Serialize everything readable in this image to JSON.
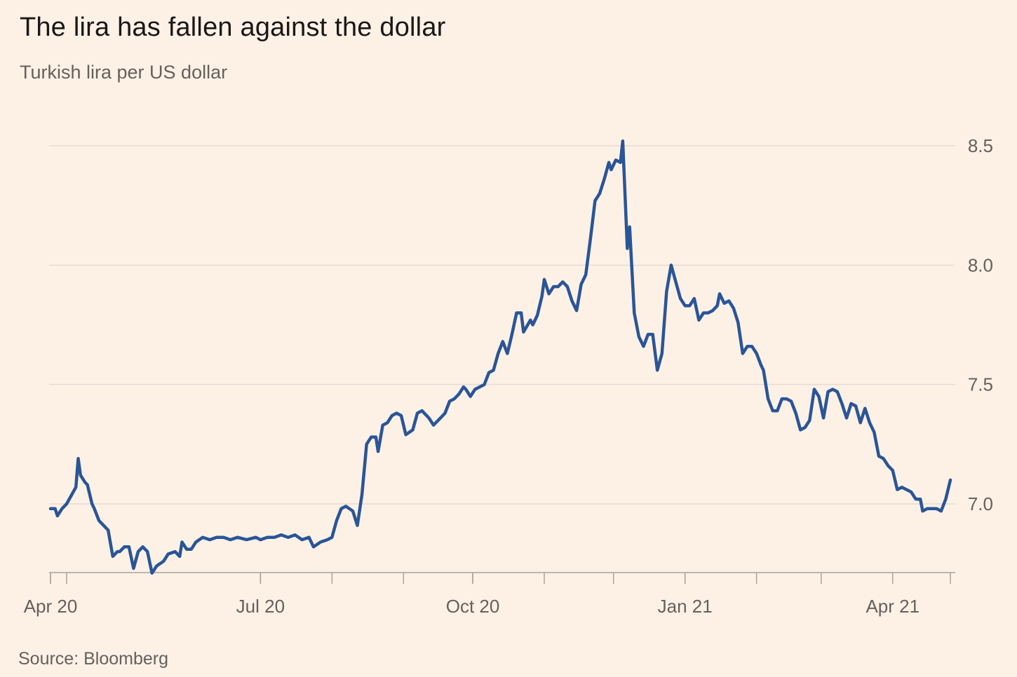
{
  "header": {
    "title": "The lira has fallen against the dollar",
    "subtitle": "Turkish lira per US dollar"
  },
  "footer": {
    "source": "Source: Bloomberg"
  },
  "colors": {
    "background": "#fdf1e6",
    "line": "#2a5597",
    "grid": "#e6dcd3",
    "text": "#66605c"
  },
  "chart_data": {
    "type": "line",
    "title": "The lira has fallen against the dollar",
    "subtitle": "Turkish lira per US dollar",
    "xlabel": "",
    "ylabel": "",
    "ylim": [
      6.7,
      8.55
    ],
    "yticks": [
      7.0,
      7.5,
      8.0,
      8.5
    ],
    "ytick_labels": [
      "7.0",
      "7.5",
      "8.0",
      "8.5"
    ],
    "y_axis_position": "right",
    "grid": true,
    "x_range": [
      "2020-04-01",
      "2021-04-26"
    ],
    "xtick_labels": [
      {
        "date": "2020-04-01",
        "label": "Apr 20"
      },
      {
        "date": "2020-07-01",
        "label": "Jul 20"
      },
      {
        "date": "2020-10-01",
        "label": "Oct 20"
      },
      {
        "date": "2021-01-01",
        "label": "Jan 21"
      },
      {
        "date": "2021-04-01",
        "label": "Apr 21"
      }
    ],
    "minor_ticks": [
      "2020-04-01",
      "2020-04-08",
      "2020-07-01",
      "2020-08-01",
      "2020-09-01",
      "2020-10-01",
      "2020-11-01",
      "2020-12-01",
      "2021-01-01",
      "2021-02-01",
      "2021-03-01",
      "2021-04-01",
      "2021-04-26"
    ],
    "series": [
      {
        "name": "",
        "color": "#2a5597",
        "points": [
          [
            "2020-04-01",
            6.98
          ],
          [
            "2020-04-03",
            6.98
          ],
          [
            "2020-04-04",
            6.95
          ],
          [
            "2020-04-06",
            6.98
          ],
          [
            "2020-04-08",
            7.0
          ],
          [
            "2020-04-12",
            7.07
          ],
          [
            "2020-04-13",
            7.19
          ],
          [
            "2020-04-14",
            7.12
          ],
          [
            "2020-04-16",
            7.09
          ],
          [
            "2020-04-17",
            7.08
          ],
          [
            "2020-04-19",
            7.0
          ],
          [
            "2020-04-20",
            6.98
          ],
          [
            "2020-04-22",
            6.93
          ],
          [
            "2020-04-24",
            6.91
          ],
          [
            "2020-04-26",
            6.89
          ],
          [
            "2020-04-28",
            6.78
          ],
          [
            "2020-04-30",
            6.8
          ],
          [
            "2020-05-01",
            6.8
          ],
          [
            "2020-05-03",
            6.82
          ],
          [
            "2020-05-05",
            6.82
          ],
          [
            "2020-05-07",
            6.73
          ],
          [
            "2020-05-09",
            6.8
          ],
          [
            "2020-05-11",
            6.82
          ],
          [
            "2020-05-13",
            6.8
          ],
          [
            "2020-05-15",
            6.71
          ],
          [
            "2020-05-17",
            6.74
          ],
          [
            "2020-05-20",
            6.76
          ],
          [
            "2020-05-22",
            6.79
          ],
          [
            "2020-05-25",
            6.8
          ],
          [
            "2020-05-27",
            6.78
          ],
          [
            "2020-05-28",
            6.84
          ],
          [
            "2020-05-30",
            6.81
          ],
          [
            "2020-06-01",
            6.81
          ],
          [
            "2020-06-03",
            6.84
          ],
          [
            "2020-06-06",
            6.86
          ],
          [
            "2020-06-09",
            6.85
          ],
          [
            "2020-06-12",
            6.86
          ],
          [
            "2020-06-15",
            6.86
          ],
          [
            "2020-06-18",
            6.85
          ],
          [
            "2020-06-21",
            6.86
          ],
          [
            "2020-06-25",
            6.85
          ],
          [
            "2020-06-29",
            6.86
          ],
          [
            "2020-07-01",
            6.85
          ],
          [
            "2020-07-04",
            6.86
          ],
          [
            "2020-07-07",
            6.86
          ],
          [
            "2020-07-10",
            6.87
          ],
          [
            "2020-07-13",
            6.86
          ],
          [
            "2020-07-16",
            6.87
          ],
          [
            "2020-07-19",
            6.85
          ],
          [
            "2020-07-22",
            6.86
          ],
          [
            "2020-07-24",
            6.82
          ],
          [
            "2020-07-27",
            6.84
          ],
          [
            "2020-07-30",
            6.85
          ],
          [
            "2020-08-01",
            6.86
          ],
          [
            "2020-08-03",
            6.93
          ],
          [
            "2020-08-05",
            6.98
          ],
          [
            "2020-08-07",
            6.99
          ],
          [
            "2020-08-10",
            6.97
          ],
          [
            "2020-08-12",
            6.91
          ],
          [
            "2020-08-14",
            7.04
          ],
          [
            "2020-08-16",
            7.25
          ],
          [
            "2020-08-18",
            7.28
          ],
          [
            "2020-08-20",
            7.28
          ],
          [
            "2020-08-21",
            7.22
          ],
          [
            "2020-08-23",
            7.33
          ],
          [
            "2020-08-25",
            7.34
          ],
          [
            "2020-08-27",
            7.37
          ],
          [
            "2020-08-29",
            7.38
          ],
          [
            "2020-08-31",
            7.37
          ],
          [
            "2020-09-02",
            7.29
          ],
          [
            "2020-09-05",
            7.31
          ],
          [
            "2020-09-07",
            7.38
          ],
          [
            "2020-09-09",
            7.39
          ],
          [
            "2020-09-12",
            7.36
          ],
          [
            "2020-09-14",
            7.33
          ],
          [
            "2020-09-17",
            7.36
          ],
          [
            "2020-09-19",
            7.38
          ],
          [
            "2020-09-21",
            7.43
          ],
          [
            "2020-09-23",
            7.44
          ],
          [
            "2020-09-25",
            7.46
          ],
          [
            "2020-09-27",
            7.49
          ],
          [
            "2020-09-28",
            7.48
          ],
          [
            "2020-09-30",
            7.45
          ],
          [
            "2020-10-02",
            7.48
          ],
          [
            "2020-10-04",
            7.49
          ],
          [
            "2020-10-06",
            7.5
          ],
          [
            "2020-10-08",
            7.55
          ],
          [
            "2020-10-10",
            7.56
          ],
          [
            "2020-10-12",
            7.63
          ],
          [
            "2020-10-14",
            7.68
          ],
          [
            "2020-10-16",
            7.63
          ],
          [
            "2020-10-18",
            7.71
          ],
          [
            "2020-10-20",
            7.8
          ],
          [
            "2020-10-22",
            7.8
          ],
          [
            "2020-10-23",
            7.72
          ],
          [
            "2020-10-26",
            7.77
          ],
          [
            "2020-10-27",
            7.75
          ],
          [
            "2020-10-29",
            7.79
          ],
          [
            "2020-10-31",
            7.87
          ],
          [
            "2020-11-01",
            7.94
          ],
          [
            "2020-11-03",
            7.88
          ],
          [
            "2020-11-05",
            7.91
          ],
          [
            "2020-11-07",
            7.91
          ],
          [
            "2020-11-09",
            7.93
          ],
          [
            "2020-11-11",
            7.91
          ],
          [
            "2020-11-13",
            7.85
          ],
          [
            "2020-11-15",
            7.81
          ],
          [
            "2020-11-17",
            7.92
          ],
          [
            "2020-11-19",
            7.96
          ],
          [
            "2020-11-21",
            8.11
          ],
          [
            "2020-11-23",
            8.27
          ],
          [
            "2020-11-25",
            8.3
          ],
          [
            "2020-11-27",
            8.36
          ],
          [
            "2020-11-29",
            8.43
          ],
          [
            "2020-11-30",
            8.4
          ],
          [
            "2020-12-02",
            8.44
          ],
          [
            "2020-12-04",
            8.43
          ],
          [
            "2020-12-05",
            8.52
          ],
          [
            "2020-12-07",
            8.07
          ],
          [
            "2020-12-08",
            8.16
          ],
          [
            "2020-12-10",
            7.8
          ],
          [
            "2020-12-12",
            7.7
          ],
          [
            "2020-12-14",
            7.66
          ],
          [
            "2020-12-16",
            7.71
          ],
          [
            "2020-12-18",
            7.71
          ],
          [
            "2020-12-20",
            7.56
          ],
          [
            "2020-12-22",
            7.63
          ],
          [
            "2020-12-24",
            7.89
          ],
          [
            "2020-12-26",
            8.0
          ],
          [
            "2020-12-28",
            7.93
          ],
          [
            "2020-12-30",
            7.86
          ],
          [
            "2021-01-01",
            7.83
          ],
          [
            "2021-01-03",
            7.83
          ],
          [
            "2021-01-05",
            7.86
          ],
          [
            "2021-01-07",
            7.77
          ],
          [
            "2021-01-09",
            7.8
          ],
          [
            "2021-01-11",
            7.8
          ],
          [
            "2021-01-13",
            7.81
          ],
          [
            "2021-01-15",
            7.83
          ],
          [
            "2021-01-16",
            7.88
          ],
          [
            "2021-01-18",
            7.84
          ],
          [
            "2021-01-20",
            7.85
          ],
          [
            "2021-01-22",
            7.82
          ],
          [
            "2021-01-24",
            7.76
          ],
          [
            "2021-01-26",
            7.63
          ],
          [
            "2021-01-28",
            7.66
          ],
          [
            "2021-01-30",
            7.66
          ],
          [
            "2021-02-01",
            7.63
          ],
          [
            "2021-02-03",
            7.58
          ],
          [
            "2021-02-04",
            7.56
          ],
          [
            "2021-02-06",
            7.44
          ],
          [
            "2021-02-08",
            7.39
          ],
          [
            "2021-02-10",
            7.39
          ],
          [
            "2021-02-12",
            7.44
          ],
          [
            "2021-02-14",
            7.44
          ],
          [
            "2021-02-16",
            7.43
          ],
          [
            "2021-02-18",
            7.38
          ],
          [
            "2021-02-20",
            7.31
          ],
          [
            "2021-02-22",
            7.32
          ],
          [
            "2021-02-24",
            7.35
          ],
          [
            "2021-02-26",
            7.48
          ],
          [
            "2021-02-28",
            7.45
          ],
          [
            "2021-03-02",
            7.36
          ],
          [
            "2021-03-04",
            7.47
          ],
          [
            "2021-03-06",
            7.48
          ],
          [
            "2021-03-08",
            7.47
          ],
          [
            "2021-03-10",
            7.42
          ],
          [
            "2021-03-12",
            7.36
          ],
          [
            "2021-03-14",
            7.42
          ],
          [
            "2021-03-16",
            7.41
          ],
          [
            "2021-03-18",
            7.34
          ],
          [
            "2021-03-20",
            7.4
          ],
          [
            "2021-03-22",
            7.34
          ],
          [
            "2021-03-24",
            7.3
          ],
          [
            "2021-03-26",
            7.2
          ],
          [
            "2021-03-28",
            7.19
          ],
          [
            "2021-03-30",
            7.16
          ],
          [
            "2021-04-01",
            7.14
          ],
          [
            "2021-04-03",
            7.06
          ],
          [
            "2021-04-05",
            7.07
          ],
          [
            "2021-04-07",
            7.06
          ],
          [
            "2021-04-09",
            7.05
          ],
          [
            "2021-04-11",
            7.02
          ],
          [
            "2021-04-13",
            7.02
          ],
          [
            "2021-04-14",
            6.97
          ],
          [
            "2021-04-16",
            6.98
          ],
          [
            "2021-04-18",
            6.98
          ],
          [
            "2021-04-20",
            6.98
          ],
          [
            "2021-04-22",
            6.97
          ],
          [
            "2021-04-24",
            7.02
          ],
          [
            "2021-04-26",
            7.1
          ]
        ]
      }
    ]
  }
}
